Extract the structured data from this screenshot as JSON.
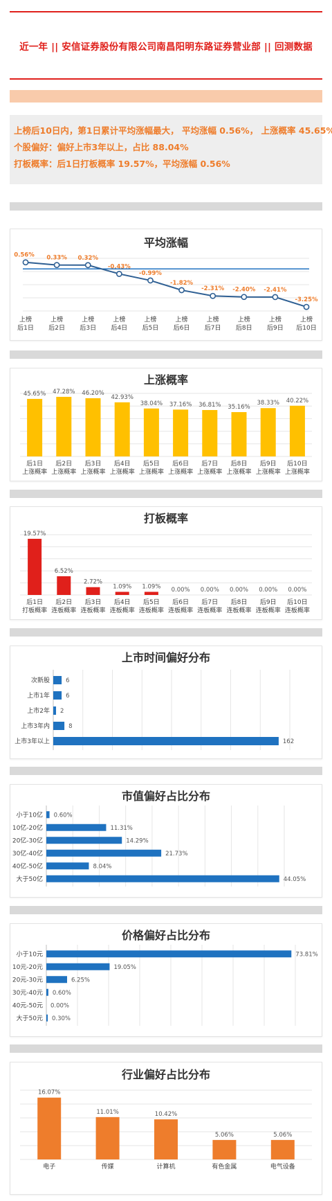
{
  "header": {
    "title": "近一年  ||  安信证券股份有限公司南昌阳明东路证券营业部  ||  回测数据"
  },
  "summary": {
    "line1": "上榜后10日内，第1日累计平均涨幅最大， 平均涨幅 0.56%， 上涨概率 45.65%",
    "line2": "个股偏好：偏好上市3年以上，占比 88.04%",
    "line3": "打板概率：后1日打板概率 19.57%，平均涨幅 0.56%"
  },
  "colors": {
    "red": "#e0201b",
    "orange": "#ee7d2c",
    "yellow": "#ffc000",
    "blue": "#1f72c0",
    "navy": "#2e5f93"
  },
  "chart_data": [
    {
      "id": "avg-rise",
      "type": "line",
      "title": "平均涨幅",
      "categories": [
        "上榜\n后1日",
        "上榜\n后2日",
        "上榜\n后3日",
        "上榜\n后4日",
        "上榜\n后5日",
        "上榜\n后6日",
        "上榜\n后7日",
        "上榜\n后8日",
        "上榜\n后9日",
        "上榜\n后10日"
      ],
      "values": [
        0.56,
        0.33,
        0.32,
        -0.43,
        -0.99,
        -1.82,
        -2.31,
        -2.4,
        -2.41,
        -3.25
      ],
      "labels": [
        "0.56%",
        "0.33%",
        "0.32%",
        "-0.43%",
        "-0.99%",
        "-1.82%",
        "-2.31%",
        "-2.40%",
        "-2.41%",
        "-3.25%"
      ],
      "reference_line": 0.0,
      "ylim": [
        -3.6,
        0.9
      ]
    },
    {
      "id": "rise-prob",
      "type": "bar",
      "title": "上涨概率",
      "categories": [
        "后1日\n上涨概率",
        "后2日\n上涨概率",
        "后3日\n上涨概率",
        "后4日\n上涨概率",
        "后5日\n上涨概率",
        "后6日\n上涨概率",
        "后7日\n上涨概率",
        "后8日\n上涨概率",
        "后9日\n上涨概率",
        "后10日\n上涨概率"
      ],
      "values": [
        45.65,
        47.28,
        46.2,
        42.93,
        38.04,
        37.16,
        36.81,
        35.16,
        38.33,
        40.22
      ],
      "labels": [
        "45.65%",
        "47.28%",
        "46.20%",
        "42.93%",
        "38.04%",
        "37.16%",
        "36.81%",
        "35.16%",
        "38.33%",
        "40.22%"
      ],
      "ylim": [
        0,
        50
      ]
    },
    {
      "id": "limit-prob",
      "type": "bar",
      "title": "打板概率",
      "categories": [
        "后1日\n打板概率",
        "后2日\n连板概率",
        "后3日\n连板概率",
        "后4日\n连板概率",
        "后5日\n连板概率",
        "后6日\n连板概率",
        "后7日\n连板概率",
        "后8日\n连板概率",
        "后9日\n连板概率",
        "后10日\n连板概率"
      ],
      "values": [
        19.57,
        6.52,
        2.72,
        1.09,
        1.09,
        0.0,
        0.0,
        0.0,
        0.0,
        0.0
      ],
      "labels": [
        "19.57%",
        "6.52%",
        "2.72%",
        "1.09%",
        "1.09%",
        "0.00%",
        "0.00%",
        "0.00%",
        "0.00%",
        "0.00%"
      ],
      "ylim": [
        0,
        21
      ]
    },
    {
      "id": "listing-time",
      "type": "bar",
      "orientation": "horizontal",
      "title": "上市时间偏好分布",
      "categories": [
        "次新股",
        "上市1年",
        "上市2年",
        "上市3年内",
        "上市3年以上"
      ],
      "values": [
        6,
        6,
        2,
        8,
        162
      ],
      "labels": [
        "6",
        "6",
        "2",
        "8",
        "162"
      ],
      "xlim": [
        0,
        170
      ]
    },
    {
      "id": "market-cap",
      "type": "bar",
      "orientation": "horizontal",
      "title": "市值偏好占比分布",
      "categories": [
        "小于10亿",
        "10亿-20亿",
        "20亿-30亿",
        "30亿-40亿",
        "40亿-50亿",
        "大于50亿"
      ],
      "values": [
        0.6,
        11.31,
        14.29,
        21.73,
        8.04,
        44.05
      ],
      "labels": [
        "0.60%",
        "11.31%",
        "14.29%",
        "21.73%",
        "8.04%",
        "44.05%"
      ],
      "xlim": [
        0,
        45
      ]
    },
    {
      "id": "price",
      "type": "bar",
      "orientation": "horizontal",
      "title": "价格偏好占比分布",
      "categories": [
        "小于10元",
        "10元-20元",
        "20元-30元",
        "30元-40元",
        "40元-50元",
        "大于50元"
      ],
      "values": [
        73.81,
        19.05,
        6.25,
        0.6,
        0.0,
        0.3
      ],
      "labels": [
        "73.81%",
        "19.05%",
        "6.25%",
        "0.60%",
        "0.00%",
        "0.30%"
      ],
      "xlim": [
        0,
        75
      ]
    },
    {
      "id": "industry",
      "type": "bar",
      "title": "行业偏好占比分布",
      "categories": [
        "电子",
        "传媒",
        "计算机",
        "有色金属",
        "电气设备"
      ],
      "values": [
        16.07,
        11.01,
        10.42,
        5.06,
        5.06
      ],
      "labels": [
        "16.07%",
        "11.01%",
        "10.42%",
        "5.06%",
        "5.06%"
      ],
      "ylim": [
        0,
        18
      ]
    }
  ]
}
